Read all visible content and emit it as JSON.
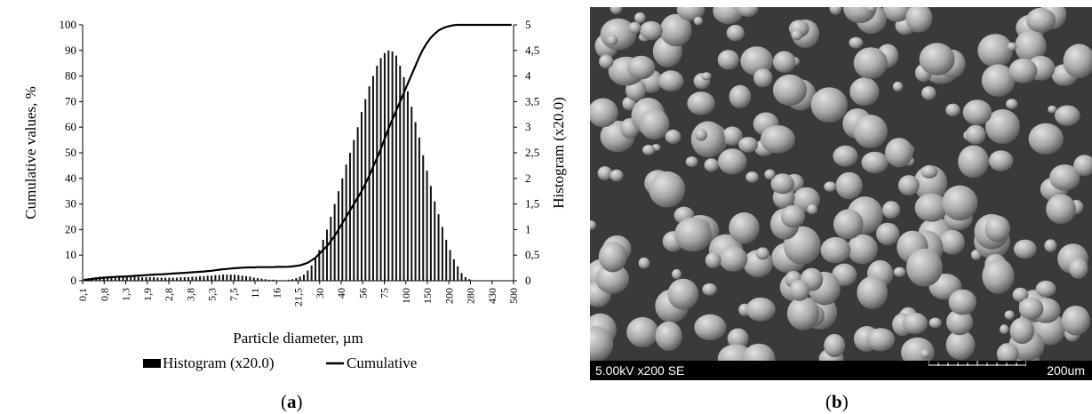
{
  "chart_data": {
    "type": "bar",
    "xlabel": "Particle diameter, µm",
    "ylabel_left": "Cumulative values, %",
    "ylabel_right": "Histogram (x20.0)",
    "ylim_left": [
      0,
      100
    ],
    "ylim_right": [
      0,
      5
    ],
    "yticks_left": [
      "0",
      "10",
      "20",
      "30",
      "40",
      "50",
      "60",
      "70",
      "80",
      "90",
      "100"
    ],
    "yticks_right": [
      "0",
      "0,5",
      "1",
      "1,5",
      "2",
      "2,5",
      "3",
      "3,5",
      "4",
      "4,5",
      "5"
    ],
    "xtick_labels": [
      "0,1",
      "0,8",
      "1,3",
      "1,9",
      "2,8",
      "3,8",
      "5,3",
      "7,5",
      "11",
      "16",
      "21,5",
      "30",
      "40",
      "56",
      "75",
      "100",
      "150",
      "200",
      "280",
      "430",
      "500"
    ],
    "series": [
      {
        "name": "Histogram (x20.0)",
        "style": "bar",
        "axis": "right",
        "values": [
          0.04,
          0.05,
          0.06,
          0.07,
          0.08,
          0.08,
          0.09,
          0.09,
          0.09,
          0.09,
          0.09,
          0.09,
          0.08,
          0.08,
          0.08,
          0.07,
          0.07,
          0.07,
          0.07,
          0.06,
          0.06,
          0.06,
          0.06,
          0.06,
          0.06,
          0.07,
          0.07,
          0.07,
          0.08,
          0.08,
          0.09,
          0.09,
          0.1,
          0.1,
          0.11,
          0.11,
          0.12,
          0.12,
          0.12,
          0.12,
          0.11,
          0.1,
          0.09,
          0.08,
          0.06,
          0.05,
          0.04,
          0.03,
          0.02,
          0.02,
          0.01,
          0.01,
          0.01,
          0.02,
          0.03,
          0.05,
          0.08,
          0.12,
          0.2,
          0.3,
          0.45,
          0.6,
          0.8,
          1.0,
          1.25,
          1.5,
          1.75,
          2.0,
          2.27,
          2.5,
          2.75,
          3.0,
          3.3,
          3.55,
          3.8,
          4.0,
          4.2,
          4.35,
          4.45,
          4.5,
          4.48,
          4.4,
          4.2,
          3.98,
          3.7,
          3.4,
          3.1,
          2.8,
          2.45,
          2.15,
          1.85,
          1.55,
          1.3,
          1.05,
          0.8,
          0.6,
          0.42,
          0.28,
          0.15,
          0.07,
          0.03,
          0.01,
          0,
          0,
          0,
          0,
          0,
          0,
          0,
          0,
          0,
          0
        ]
      },
      {
        "name": "Cumulative",
        "style": "line",
        "axis": "left",
        "values": [
          0.3,
          0.5,
          0.7,
          0.9,
          1.0,
          1.2,
          1.3,
          1.4,
          1.5,
          1.6,
          1.6,
          1.7,
          1.8,
          1.9,
          2.0,
          2.1,
          2.2,
          2.3,
          2.4,
          2.5,
          2.5,
          2.6,
          2.7,
          2.8,
          2.9,
          3.0,
          3.1,
          3.2,
          3.3,
          3.4,
          3.5,
          3.6,
          3.8,
          3.9,
          4.1,
          4.3,
          4.5,
          4.6,
          4.8,
          4.9,
          5.0,
          5.1,
          5.2,
          5.2,
          5.2,
          5.3,
          5.3,
          5.3,
          5.3,
          5.3,
          5.4,
          5.4,
          5.4,
          5.5,
          5.6,
          5.8,
          6.0,
          6.5,
          7.0,
          8.0,
          9.0,
          10.5,
          12.0,
          13.5,
          15.5,
          17.5,
          20.0,
          22.5,
          25.0,
          27.5,
          30.0,
          32.5,
          35.0,
          38.0,
          41.0,
          44.5,
          48.0,
          51.5,
          55.5,
          59.5,
          63.0,
          66.5,
          70.0,
          73.5,
          77.0,
          80.5,
          84.0,
          87.5,
          90.5,
          93.0,
          95.0,
          96.5,
          97.8,
          98.6,
          99.2,
          99.6,
          99.9,
          100,
          100,
          100,
          100,
          100,
          100,
          100,
          100,
          100,
          100,
          100,
          100,
          100,
          100,
          100
        ]
      }
    ],
    "legend": [
      "Histogram (x20.0)",
      "Cumulative"
    ],
    "legend_position": "bottom"
  },
  "sem_image": {
    "info_left": "5.00kV x200 SE",
    "info_right": "200um"
  },
  "labels": {
    "a_prefix": "(",
    "a_letter": "a",
    "a_suffix": ")",
    "b_prefix": "(",
    "b_letter": "b",
    "b_suffix": ")"
  }
}
